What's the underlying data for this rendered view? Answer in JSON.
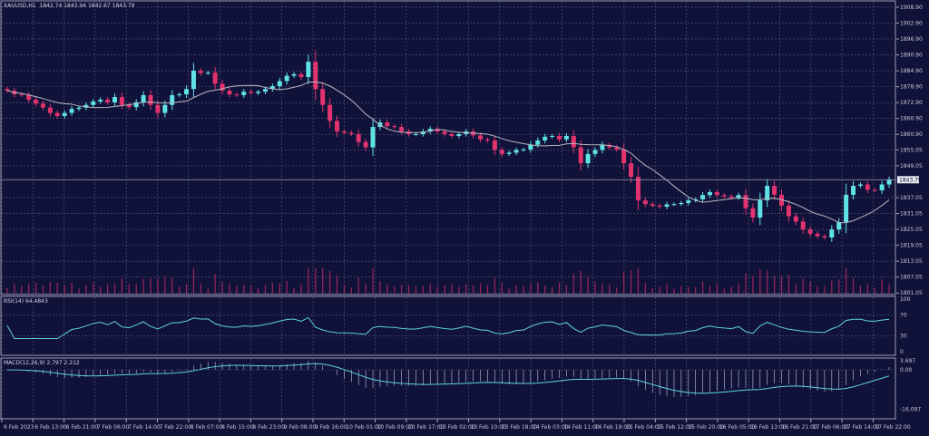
{
  "header": {
    "symbol": "XAUUSD,H1",
    "ohlc": "1842.74 1843.94 1842.67 1843.79"
  },
  "rsi": {
    "label": "RSI(14) 64.4843",
    "levels": [
      "100",
      "70",
      "30",
      "0"
    ]
  },
  "macd": {
    "label": "MACD(12,26,9) 2.797 2.212",
    "levels": [
      "3.697",
      "0.00",
      "-16.097"
    ]
  },
  "colors": {
    "background": "#10123a",
    "bull": "#5fe3e6",
    "bear": "#e2336e",
    "ma": "#b8b8c0",
    "indicator": "#5fd3e0",
    "grid": "#5a5d80",
    "volume": "#c02a66"
  },
  "chart_data": {
    "type": "candlestick",
    "symbol": "XAUUSD",
    "timeframe": "H1",
    "ylim": [
      1801.05,
      1908.9
    ],
    "price_ticks": [
      "1908.90",
      "1902.90",
      "1896.90",
      "1890.90",
      "1884.90",
      "1878.90",
      "1872.90",
      "1866.90",
      "1860.90",
      "1855.05",
      "1849.05",
      "1837.05",
      "1831.05",
      "1825.05",
      "1819.05",
      "1813.05",
      "1807.05",
      "1801.05"
    ],
    "current_price": "1843.79",
    "time_ticks": [
      "6 Feb 2023",
      "6 Feb 13:00",
      "6 Feb 21:00",
      "7 Feb 06:00",
      "7 Feb 14:00",
      "7 Feb 22:00",
      "8 Feb 07:00",
      "8 Feb 15:00",
      "8 Feb 23:00",
      "9 Feb 08:00",
      "9 Feb 16:00",
      "10 Feb 01:00",
      "10 Feb 09:00",
      "10 Feb 17:00",
      "13 Feb 02:00",
      "13 Feb 10:00",
      "13 Feb 18:00",
      "14 Feb 03:00",
      "14 Feb 11:00",
      "14 Feb 19:00",
      "15 Feb 04:00",
      "15 Feb 12:00",
      "15 Feb 20:00",
      "16 Feb 05:00",
      "16 Feb 13:00",
      "16 Feb 21:00",
      "17 Feb 06:00",
      "17 Feb 14:00",
      "17 Feb 22:00"
    ],
    "closes": [
      1877.4,
      1876,
      1875.7,
      1874,
      1872.5,
      1871,
      1869,
      1867.8,
      1869,
      1870.5,
      1871,
      1872,
      1873.3,
      1874,
      1873,
      1875,
      1872,
      1871.2,
      1873,
      1875.7,
      1872,
      1869,
      1872,
      1875.7,
      1876,
      1878,
      1884.9,
      1884,
      1884.2,
      1880,
      1877.4,
      1876,
      1875.7,
      1877,
      1876.5,
      1877,
      1878,
      1879.1,
      1881,
      1883,
      1883.6,
      1882.5,
      1888.3,
      1878,
      1872,
      1866,
      1862,
      1861.5,
      1861,
      1858,
      1856,
      1863.7,
      1865.4,
      1864,
      1863.7,
      1862,
      1861,
      1861,
      1862,
      1863,
      1862,
      1861,
      1860.3,
      1861,
      1862,
      1860.5,
      1859,
      1858.6,
      1855,
      1853.5,
      1854,
      1855,
      1855.2,
      1857,
      1858.6,
      1860,
      1860.3,
      1859,
      1860.3,
      1856,
      1850,
      1853.5,
      1855,
      1856.9,
      1856,
      1855.2,
      1850,
      1844.9,
      1836,
      1834.6,
      1834,
      1833.6,
      1834.5,
      1834.6,
      1835,
      1836,
      1836.4,
      1838,
      1839.1,
      1838,
      1837.5,
      1837,
      1838,
      1833,
      1829.5,
      1836,
      1841.5,
      1838.1,
      1834,
      1830,
      1828,
      1825,
      1823.4,
      1822.5,
      1822,
      1825,
      1827.8,
      1838.1,
      1841.5,
      1842,
      1840,
      1839.8,
      1842,
      1843.79
    ],
    "moving_average": "SMA",
    "rsi_range": [
      0,
      100
    ],
    "macd_range": [
      -16.097,
      3.697
    ]
  }
}
